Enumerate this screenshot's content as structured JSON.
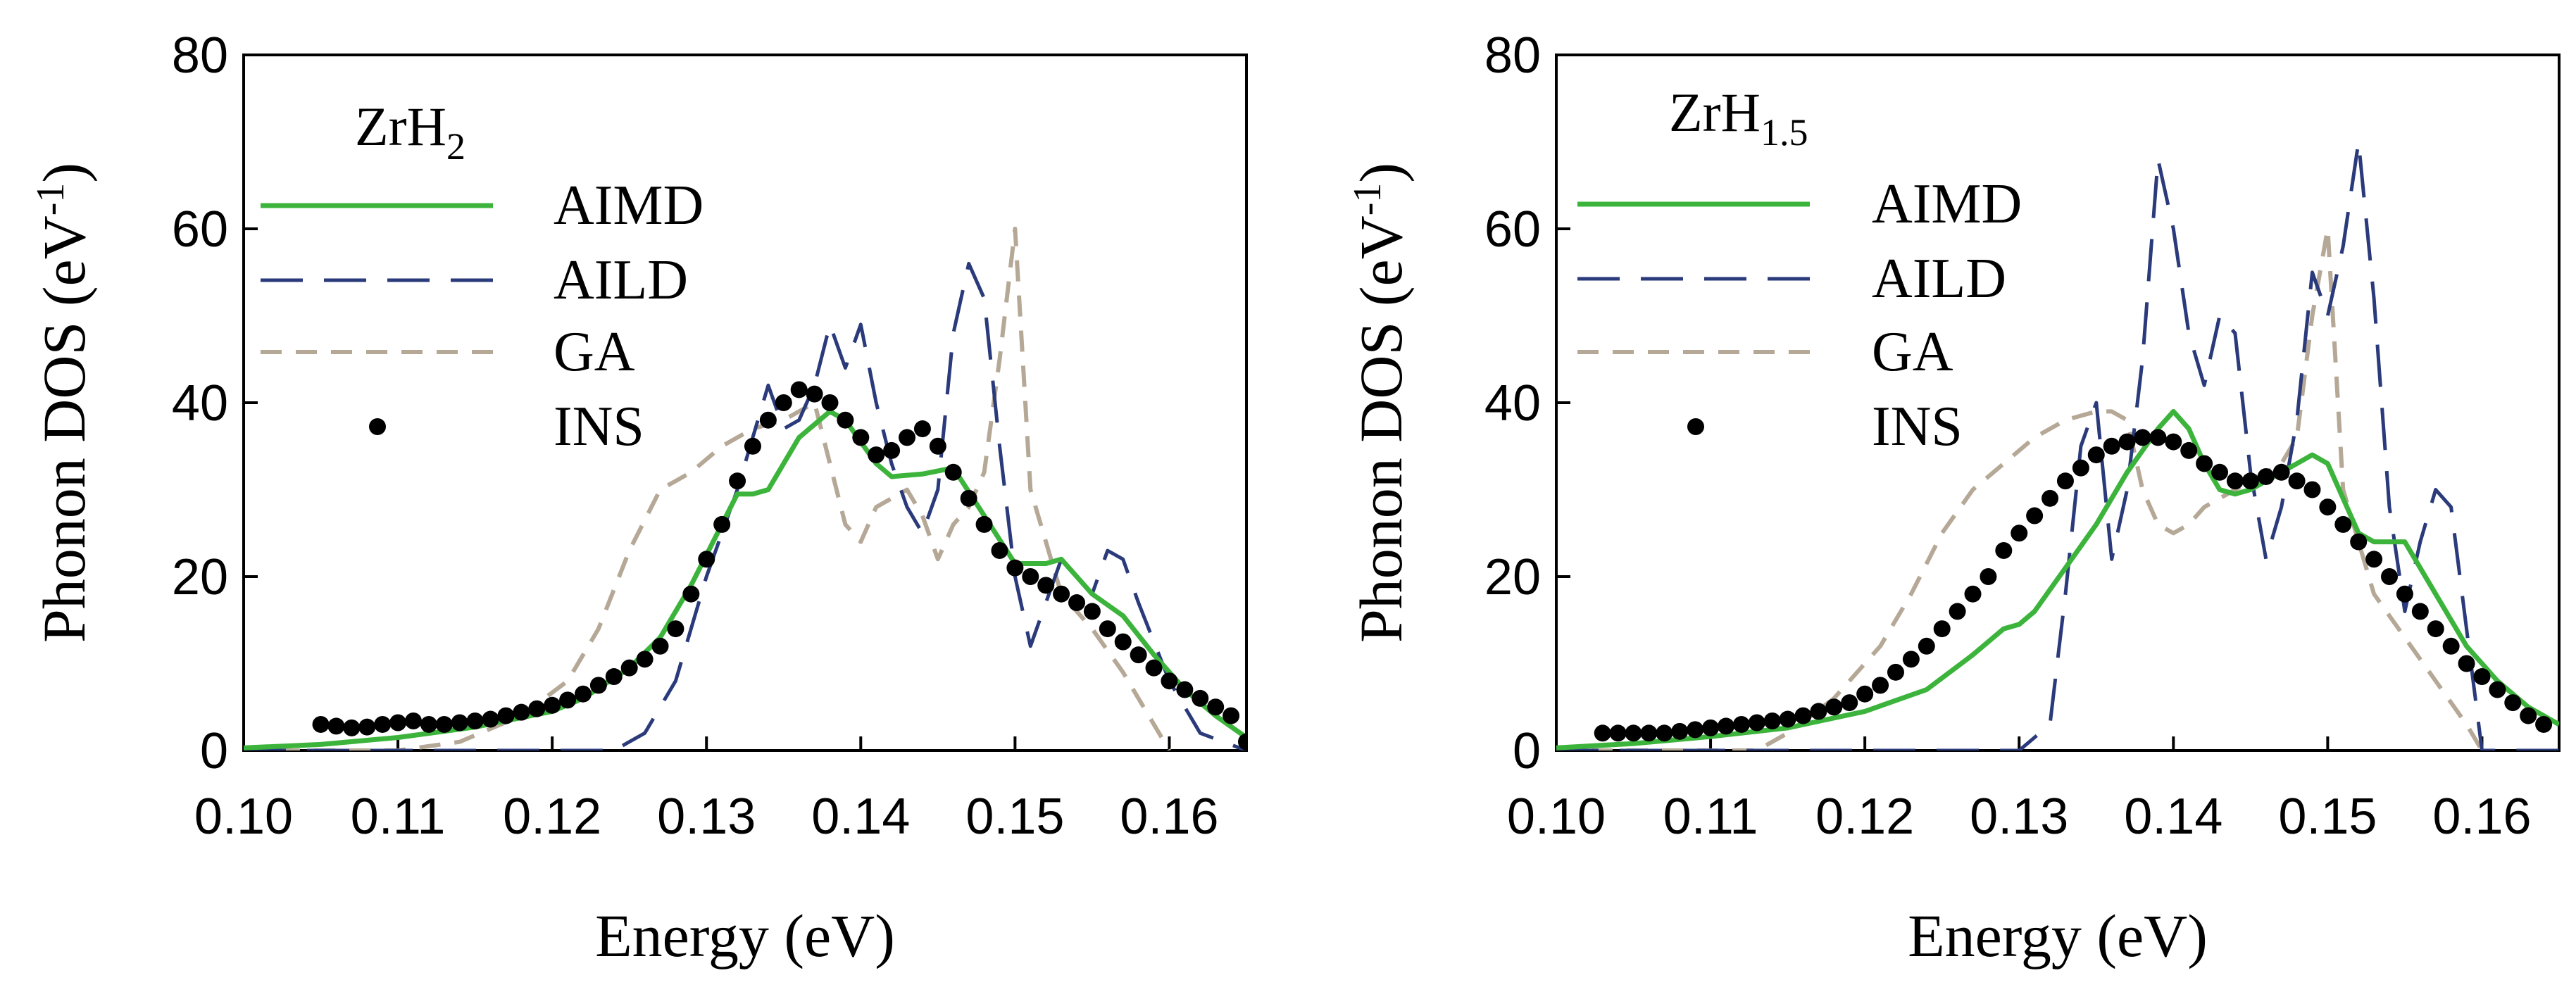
{
  "chart_data": [
    {
      "type": "line",
      "title": "ZrH",
      "title_subscript": "2",
      "xlabel": "Energy (eV)",
      "ylabel": "Phonon DOS (eV",
      "ylabel_sup": "-1",
      "ylabel_end": ")",
      "xlim": [
        0.1,
        0.165
      ],
      "ylim": [
        0,
        80
      ],
      "xticks": [
        "0.10",
        "0.11",
        "0.12",
        "0.13",
        "0.14",
        "0.15",
        "0.16"
      ],
      "yticks": [
        "0",
        "20",
        "40",
        "60",
        "80"
      ],
      "legend": [
        "AIMD",
        "AILD",
        "GA",
        "INS"
      ],
      "series": [
        {
          "name": "AIMD",
          "color": "#3cb43c",
          "style": "solid",
          "x": [
            0.1,
            0.105,
            0.11,
            0.115,
            0.12,
            0.122,
            0.125,
            0.127,
            0.129,
            0.131,
            0.132,
            0.133,
            0.134,
            0.136,
            0.138,
            0.139,
            0.141,
            0.142,
            0.144,
            0.146,
            0.148,
            0.15,
            0.152,
            0.153,
            0.155,
            0.157,
            0.159,
            0.161,
            0.163,
            0.165
          ],
          "y": [
            0.3,
            0.7,
            1.5,
            2.7,
            4.5,
            6,
            9.5,
            13,
            19,
            26,
            29.5,
            29.5,
            30,
            36,
            39,
            38,
            33,
            31.5,
            31.8,
            32.5,
            27,
            21.5,
            21.5,
            22,
            18,
            15.5,
            11,
            7,
            4,
            1.5
          ]
        },
        {
          "name": "AILD",
          "color": "#2a3a7a",
          "style": "longdash",
          "x": [
            0.1,
            0.12,
            0.124,
            0.126,
            0.128,
            0.13,
            0.132,
            0.134,
            0.135,
            0.136,
            0.137,
            0.138,
            0.139,
            0.14,
            0.141,
            0.142,
            0.143,
            0.144,
            0.145,
            0.146,
            0.147,
            0.148,
            0.149,
            0.15,
            0.151,
            0.152,
            0.153,
            0.154,
            0.155,
            0.156,
            0.157,
            0.158,
            0.16,
            0.162,
            0.165
          ],
          "y": [
            0,
            0,
            0,
            2,
            8,
            20,
            30,
            42,
            37,
            38,
            42,
            49,
            44,
            49,
            40,
            33,
            28,
            25,
            30,
            48,
            56,
            52,
            35,
            20,
            12,
            17,
            22,
            20,
            18,
            23,
            22,
            17,
            8,
            2,
            0
          ]
        },
        {
          "name": "GA",
          "color": "#b5a896",
          "style": "dash",
          "x": [
            0.1,
            0.11,
            0.114,
            0.118,
            0.121,
            0.123,
            0.125,
            0.127,
            0.129,
            0.131,
            0.133,
            0.135,
            0.137,
            0.138,
            0.139,
            0.14,
            0.141,
            0.143,
            0.144,
            0.145,
            0.146,
            0.147,
            0.148,
            0.149,
            0.15,
            0.151,
            0.153,
            0.155,
            0.157,
            0.159,
            0.16
          ],
          "y": [
            0,
            0,
            1,
            4,
            8,
            14,
            23,
            30,
            32,
            35,
            37,
            38,
            40,
            33,
            26,
            24,
            28,
            30,
            27,
            22,
            26,
            28,
            32,
            45,
            60,
            30,
            18,
            14,
            9,
            3,
            0
          ]
        },
        {
          "name": "INS",
          "color": "#000000",
          "style": "dots",
          "x": [
            0.105,
            0.106,
            0.107,
            0.108,
            0.109,
            0.11,
            0.111,
            0.112,
            0.113,
            0.114,
            0.115,
            0.116,
            0.117,
            0.118,
            0.119,
            0.12,
            0.121,
            0.122,
            0.123,
            0.124,
            0.125,
            0.126,
            0.127,
            0.128,
            0.129,
            0.13,
            0.131,
            0.132,
            0.133,
            0.134,
            0.135,
            0.136,
            0.137,
            0.138,
            0.139,
            0.14,
            0.141,
            0.142,
            0.143,
            0.144,
            0.145,
            0.146,
            0.147,
            0.148,
            0.149,
            0.15,
            0.151,
            0.152,
            0.153,
            0.154,
            0.155,
            0.156,
            0.157,
            0.158,
            0.159,
            0.16,
            0.161,
            0.162,
            0.163,
            0.164,
            0.165
          ],
          "y": [
            3,
            2.8,
            2.6,
            2.7,
            3,
            3.2,
            3.4,
            3,
            3,
            3.2,
            3.4,
            3.6,
            4,
            4.4,
            4.8,
            5.2,
            5.8,
            6.5,
            7.5,
            8.5,
            9.5,
            10.5,
            12,
            14,
            18,
            22,
            26,
            31,
            35,
            38,
            40,
            41.5,
            41,
            40,
            38,
            36,
            34,
            34.5,
            36,
            37,
            35,
            32,
            29,
            26,
            23,
            21,
            20,
            19,
            18,
            17,
            16,
            14,
            12.5,
            11,
            9.5,
            8,
            7,
            6,
            5,
            4,
            1
          ]
        }
      ]
    },
    {
      "type": "line",
      "title": "ZrH",
      "title_subscript": "1.5",
      "xlabel": "Energy (eV)",
      "ylabel": "Phonon DOS (eV",
      "ylabel_sup": "-1",
      "ylabel_end": ")",
      "xlim": [
        0.1,
        0.165
      ],
      "ylim": [
        0,
        80
      ],
      "xticks": [
        "0.10",
        "0.11",
        "0.12",
        "0.13",
        "0.14",
        "0.15",
        "0.16"
      ],
      "yticks": [
        "0",
        "20",
        "40",
        "60",
        "80"
      ],
      "legend": [
        "AIMD",
        "AILD",
        "GA",
        "INS"
      ],
      "series": [
        {
          "name": "AIMD",
          "color": "#3cb43c",
          "style": "solid",
          "x": [
            0.1,
            0.105,
            0.11,
            0.115,
            0.12,
            0.124,
            0.127,
            0.129,
            0.13,
            0.131,
            0.133,
            0.135,
            0.137,
            0.139,
            0.14,
            0.141,
            0.142,
            0.143,
            0.144,
            0.145,
            0.146,
            0.147,
            0.148,
            0.149,
            0.15,
            0.151,
            0.152,
            0.153,
            0.155,
            0.157,
            0.159,
            0.161,
            0.163,
            0.165
          ],
          "y": [
            0.3,
            0.8,
            1.6,
            2.6,
            4.5,
            7,
            11,
            14,
            14.5,
            16,
            21,
            26,
            32,
            37,
            39,
            37,
            33,
            30,
            29.5,
            30,
            31,
            32,
            33,
            34,
            33,
            29,
            25,
            24,
            24,
            18,
            12,
            8,
            5,
            3
          ]
        },
        {
          "name": "AILD",
          "color": "#2a3a7a",
          "style": "longdash",
          "x": [
            0.1,
            0.13,
            0.132,
            0.133,
            0.134,
            0.135,
            0.136,
            0.137,
            0.138,
            0.139,
            0.14,
            0.141,
            0.142,
            0.143,
            0.144,
            0.145,
            0.146,
            0.147,
            0.148,
            0.149,
            0.15,
            0.151,
            0.152,
            0.153,
            0.154,
            0.155,
            0.156,
            0.157,
            0.158,
            0.16,
            0.165
          ],
          "y": [
            0,
            0,
            3,
            18,
            35,
            40,
            22,
            30,
            45,
            68,
            60,
            48,
            42,
            50,
            48,
            32,
            22,
            28,
            38,
            55,
            50,
            58,
            70,
            52,
            28,
            16,
            24,
            30,
            28,
            0,
            0
          ]
        },
        {
          "name": "GA",
          "color": "#b5a896",
          "style": "dash",
          "x": [
            0.1,
            0.113,
            0.115,
            0.118,
            0.121,
            0.123,
            0.125,
            0.127,
            0.129,
            0.131,
            0.133,
            0.135,
            0.136,
            0.137,
            0.138,
            0.139,
            0.14,
            0.141,
            0.142,
            0.144,
            0.146,
            0.147,
            0.148,
            0.149,
            0.15,
            0.151,
            0.153,
            0.155,
            0.157,
            0.159,
            0.16
          ],
          "y": [
            0,
            0,
            2,
            6,
            12,
            18,
            25,
            30,
            33,
            36,
            38,
            39,
            39,
            38,
            30,
            26,
            25,
            26,
            28,
            30,
            32,
            33,
            36,
            50,
            60,
            30,
            18,
            13,
            8,
            3,
            0
          ]
        },
        {
          "name": "INS",
          "color": "#000000",
          "style": "dots",
          "x": [
            0.103,
            0.104,
            0.105,
            0.106,
            0.107,
            0.108,
            0.109,
            0.11,
            0.111,
            0.112,
            0.113,
            0.114,
            0.115,
            0.116,
            0.117,
            0.118,
            0.119,
            0.12,
            0.121,
            0.122,
            0.123,
            0.124,
            0.125,
            0.126,
            0.127,
            0.128,
            0.129,
            0.13,
            0.131,
            0.132,
            0.133,
            0.134,
            0.135,
            0.136,
            0.137,
            0.138,
            0.139,
            0.14,
            0.141,
            0.142,
            0.143,
            0.144,
            0.145,
            0.146,
            0.147,
            0.148,
            0.149,
            0.15,
            0.151,
            0.152,
            0.153,
            0.154,
            0.155,
            0.156,
            0.157,
            0.158,
            0.159,
            0.16,
            0.161,
            0.162,
            0.163,
            0.164
          ],
          "y": [
            2,
            2,
            2,
            2,
            2,
            2.2,
            2.4,
            2.6,
            2.8,
            3,
            3.2,
            3.4,
            3.6,
            4,
            4.5,
            5,
            5.5,
            6.5,
            7.5,
            9,
            10.5,
            12,
            14,
            16,
            18,
            20,
            23,
            25,
            27,
            29,
            31,
            32.5,
            34,
            35,
            35.5,
            36,
            36,
            35.5,
            34.5,
            33,
            32,
            31,
            31,
            31.5,
            32,
            31,
            30,
            28,
            26,
            24,
            22,
            20,
            18,
            16,
            14,
            12,
            10,
            8.5,
            7,
            5.5,
            4,
            3
          ]
        }
      ]
    }
  ]
}
